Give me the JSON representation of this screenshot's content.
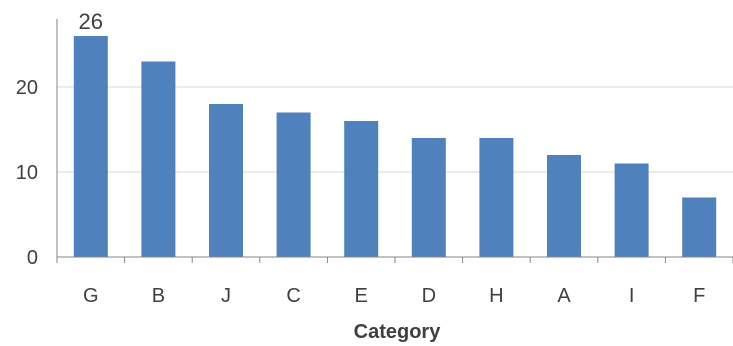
{
  "chart_data": {
    "type": "bar",
    "categories": [
      "G",
      "B",
      "J",
      "C",
      "E",
      "D",
      "H",
      "A",
      "I",
      "F"
    ],
    "values": [
      26,
      23,
      18,
      17,
      16,
      14,
      14,
      12,
      11,
      7
    ],
    "xlabel": "Category",
    "ylabel": "",
    "ylim": [
      0,
      28
    ],
    "yticks": [
      0,
      10,
      20
    ],
    "grid": true,
    "data_labels": [
      {
        "category": "G",
        "text": "26"
      }
    ],
    "colors": {
      "bar": "#4f81bd",
      "grid": "#d9d9d9",
      "axis": "#868686",
      "text": "#404040"
    }
  }
}
